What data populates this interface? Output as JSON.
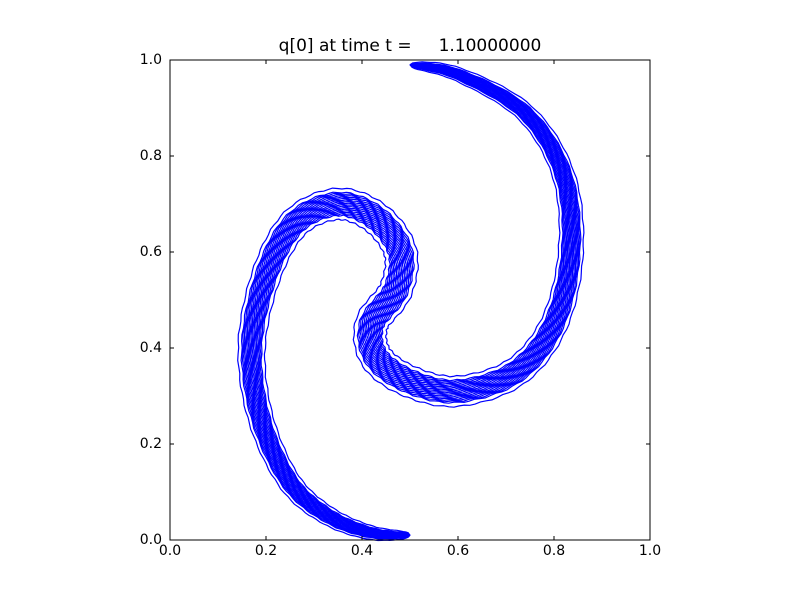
{
  "chart_data": {
    "type": "contour",
    "title": "q[0] at time t =     1.10000000",
    "color": "#0000ff",
    "xlim": [
      0,
      1
    ],
    "ylim": [
      0,
      1
    ],
    "xticks": [
      {
        "value": 0,
        "label": "0.0"
      },
      {
        "value": 0.2,
        "label": "0.2"
      },
      {
        "value": 0.4,
        "label": "0.4"
      },
      {
        "value": 0.6,
        "label": "0.6"
      },
      {
        "value": 0.8,
        "label": "0.8"
      },
      {
        "value": 1,
        "label": "1.0"
      }
    ],
    "yticks": [
      {
        "value": 0,
        "label": "0.0"
      },
      {
        "value": 0.2,
        "label": "0.2"
      },
      {
        "value": 0.4,
        "label": "0.4"
      },
      {
        "value": 0.6,
        "label": "0.6"
      },
      {
        "value": 0.8,
        "label": "0.8"
      },
      {
        "value": 1,
        "label": "1.0"
      }
    ]
  }
}
